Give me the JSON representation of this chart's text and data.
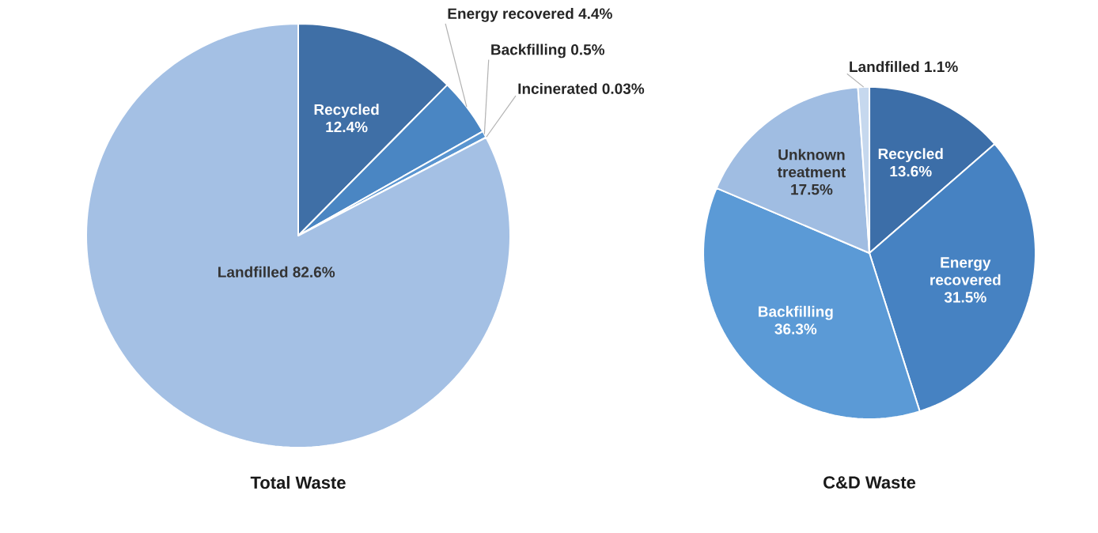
{
  "chart_data": [
    {
      "type": "pie",
      "title": "Total Waste",
      "categories": [
        "Recycled",
        "Energy recovered",
        "Backfilling",
        "Incinerated",
        "Landfilled"
      ],
      "values": [
        12.4,
        4.4,
        0.5,
        0.03,
        82.6
      ],
      "value_labels": [
        "12.4%",
        "4.4%",
        "0.5%",
        "0.03%",
        "82.6%"
      ],
      "colors": [
        "#3f6fa6",
        "#4a86c3",
        "#5a95d0",
        "#7aa7d8",
        "#a4c0e4"
      ]
    },
    {
      "type": "pie",
      "title": "C&D Waste",
      "categories": [
        "Recycled",
        "Energy recovered",
        "Backfilling",
        "Unknown treatment",
        "Landfilled"
      ],
      "values": [
        13.6,
        31.5,
        36.3,
        17.5,
        1.1
      ],
      "value_labels": [
        "13.6%",
        "31.5%",
        "36.3%",
        "17.5%",
        "1.1%"
      ],
      "colors": [
        "#3c6ea8",
        "#4682c2",
        "#5b9ad6",
        "#a0bde2",
        "#c6d8ee"
      ]
    }
  ]
}
